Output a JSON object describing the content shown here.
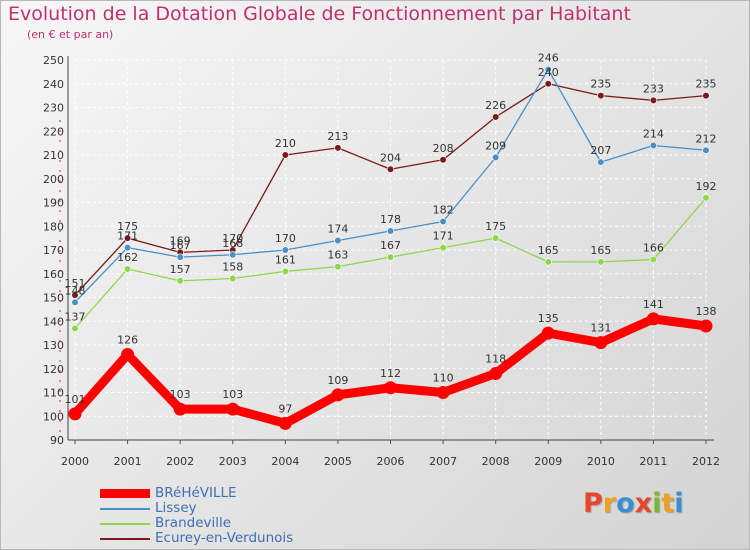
{
  "title": "Evolution de la Dotation Globale de Fonctionnement par Habitant",
  "subtitle": "(en € et par an)",
  "logo": {
    "text": "Proxiti",
    "letters": [
      {
        "ch": "P",
        "color": "#e8452d"
      },
      {
        "ch": "r",
        "color": "#f0a020"
      },
      {
        "ch": "o",
        "color": "#3a8fd0"
      },
      {
        "ch": "x",
        "color": "#e8452d"
      },
      {
        "ch": "i",
        "color": "#7ab830"
      },
      {
        "ch": "t",
        "color": "#f0a020"
      },
      {
        "ch": "i",
        "color": "#3a8fd0"
      }
    ]
  },
  "chart_data": {
    "type": "line",
    "x": [
      "2000",
      "2001",
      "2002",
      "2003",
      "2004",
      "2005",
      "2006",
      "2007",
      "2008",
      "2009",
      "2010",
      "2011",
      "2012"
    ],
    "ylim": [
      90,
      250
    ],
    "yticks": [
      90,
      100,
      110,
      120,
      130,
      140,
      150,
      160,
      170,
      180,
      190,
      200,
      210,
      220,
      230,
      240,
      250
    ],
    "grid": true,
    "legend_position": "bottom-left",
    "series": [
      {
        "name": "BRéHéVILLE",
        "color": "#ff0000",
        "thick": true,
        "values": [
          101,
          126,
          103,
          103,
          97,
          109,
          112,
          110,
          118,
          135,
          131,
          141,
          138
        ]
      },
      {
        "name": "Lissey",
        "color": "#4a90c8",
        "thick": false,
        "values": [
          148,
          171,
          167,
          168,
          170,
          174,
          178,
          182,
          209,
          246,
          207,
          214,
          212
        ]
      },
      {
        "name": "Brandeville",
        "color": "#8fd64a",
        "thick": false,
        "values": [
          137,
          162,
          157,
          158,
          161,
          163,
          167,
          171,
          175,
          165,
          165,
          166,
          192
        ]
      },
      {
        "name": "Ecurey-en-Verdunois",
        "color": "#7a1a1a",
        "thick": false,
        "values": [
          151,
          175,
          169,
          170,
          210,
          213,
          204,
          208,
          226,
          240,
          235,
          233,
          235
        ]
      }
    ]
  }
}
